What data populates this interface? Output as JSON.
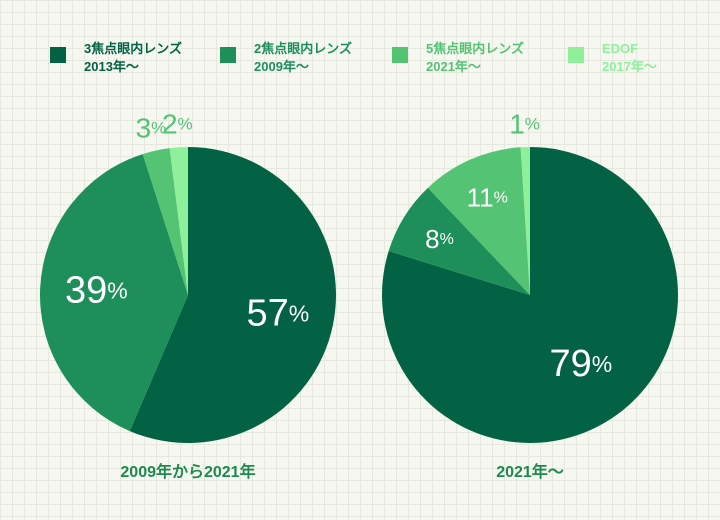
{
  "legend": [
    {
      "name": "3焦点眼内レンズ",
      "period": "2013年〜",
      "color": "#036243"
    },
    {
      "name": "2焦点眼内レンズ",
      "period": "2009年〜",
      "color": "#1e8f5a"
    },
    {
      "name": "5焦点眼内レンズ",
      "period": "2021年〜",
      "color": "#54c374"
    },
    {
      "name": "EDOF",
      "period": "2017年〜",
      "color": "#8ef09a"
    }
  ],
  "chart_data": [
    {
      "type": "pie",
      "title": "2009年から2021年",
      "categories": [
        "3焦点眼内レンズ",
        "2焦点眼内レンズ",
        "5焦点眼内レンズ",
        "EDOF"
      ],
      "values": [
        57,
        39,
        3,
        2
      ],
      "labels": [
        "57",
        "39",
        "3",
        "2"
      ],
      "unit": "%"
    },
    {
      "type": "pie",
      "title": "2021年〜",
      "categories": [
        "3焦点眼内レンズ",
        "2焦点眼内レンズ",
        "5焦点眼内レンズ",
        "EDOF"
      ],
      "values": [
        79,
        8,
        11,
        1
      ],
      "labels": [
        "79",
        "8",
        "11",
        "1"
      ],
      "unit": "%"
    }
  ]
}
